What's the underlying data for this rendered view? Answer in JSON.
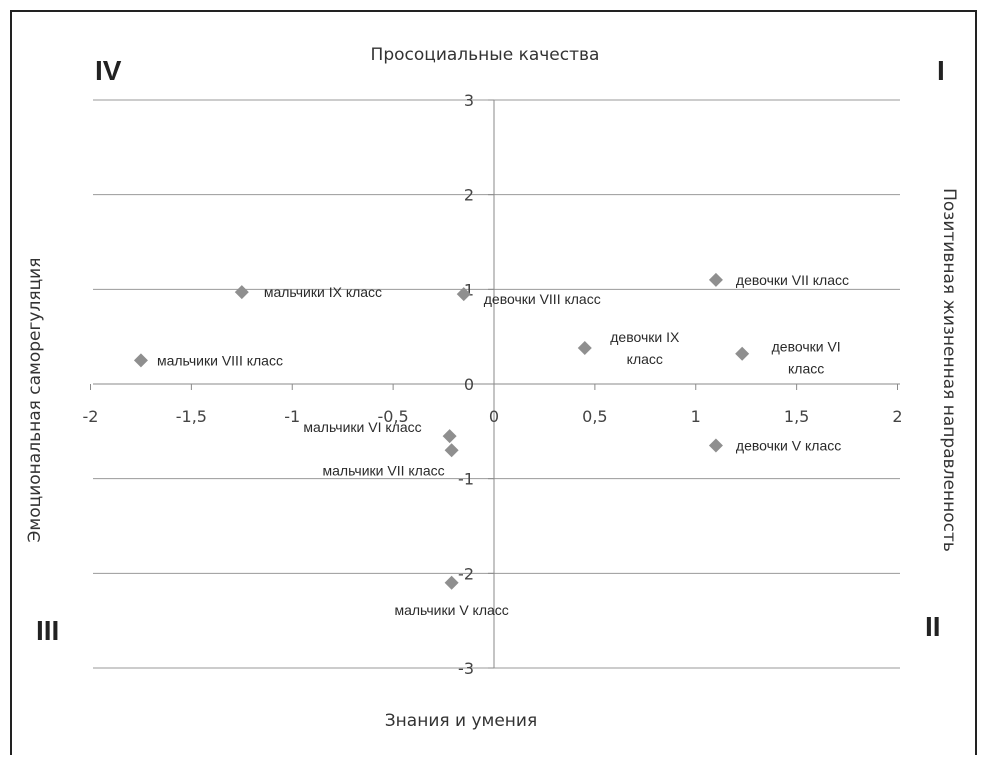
{
  "chart_data": {
    "type": "scatter",
    "x_ticks": [
      "-2",
      "-1,5",
      "-1",
      "-0,5",
      "0",
      "0,5",
      "1",
      "1,5",
      "2"
    ],
    "y_ticks": [
      "-3",
      "-2",
      "-1",
      "0",
      "1",
      "2",
      "3"
    ],
    "xlim": [
      -2,
      2
    ],
    "ylim": [
      -3,
      3
    ],
    "grid": "horizontal",
    "marker_color": "#8f8f8f",
    "axis_titles": {
      "top": "Просоциальные качества",
      "bottom": "Знания и умения",
      "left": "Эмоциональная саморегуляция",
      "right": "Позитивная жизненная направленность"
    },
    "quadrants": {
      "q1": "I",
      "q2": "II",
      "q3": "III",
      "q4": "IV"
    },
    "points": [
      {
        "label": "девочки VII класс",
        "x": 1.1,
        "y": 1.1
      },
      {
        "label": "девочки VIII класс",
        "x": -0.15,
        "y": 0.95
      },
      {
        "label": "мальчики IX класс",
        "x": -1.25,
        "y": 0.97
      },
      {
        "label": "мальчики VIII класс",
        "x": -1.75,
        "y": 0.25
      },
      {
        "label": "девочки IX класс",
        "x": 0.45,
        "y": 0.38
      },
      {
        "label": "девочки VI класс",
        "x": 1.23,
        "y": 0.32
      },
      {
        "label": "девочки V класс",
        "x": 1.1,
        "y": -0.65
      },
      {
        "label": "мальчики VI класс",
        "x": -0.22,
        "y": -0.55
      },
      {
        "label": "мальчики VII класс",
        "x": -0.21,
        "y": -0.7
      },
      {
        "label": "мальчики V класс",
        "x": -0.21,
        "y": -2.1
      }
    ]
  }
}
